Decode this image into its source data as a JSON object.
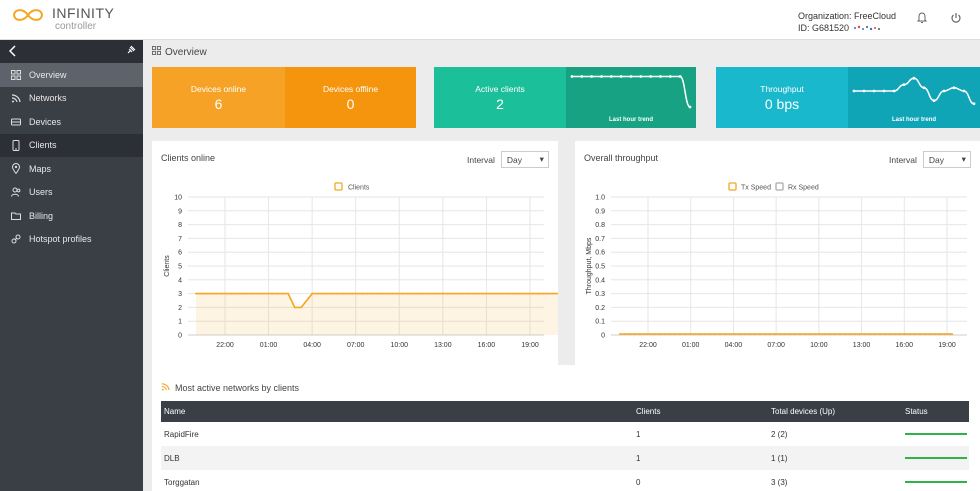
{
  "header": {
    "logo_name": "INFINITY",
    "logo_sub": "controller",
    "organization": "Organization: FreeCloud",
    "id_label": "ID: G681520"
  },
  "sidebar": {
    "items": [
      {
        "label": "Overview",
        "icon": "grid-icon"
      },
      {
        "label": "Networks",
        "icon": "wifi-icon"
      },
      {
        "label": "Devices",
        "icon": "device-icon"
      },
      {
        "label": "Clients",
        "icon": "phone-icon"
      },
      {
        "label": "Maps",
        "icon": "map-pin-icon"
      },
      {
        "label": "Users",
        "icon": "users-icon"
      },
      {
        "label": "Billing",
        "icon": "folder-icon"
      },
      {
        "label": "Hotspot profiles",
        "icon": "link-icon"
      }
    ]
  },
  "page": {
    "title": "Overview"
  },
  "cards": {
    "devices_online": {
      "label": "Devices online",
      "value": "6",
      "color": "#f6a226"
    },
    "devices_offline": {
      "label": "Devices offline",
      "value": "0",
      "color": "#f5950d"
    },
    "active_clients": {
      "label": "Active clients",
      "value": "2",
      "color": "#1bbf9a",
      "trend_color": "#16a283",
      "trend_label": "Last hour trend"
    },
    "throughput": {
      "label": "Throughput",
      "value": "0 bps",
      "color": "#1ab8cc",
      "trend_color": "#10a4b7",
      "trend_label": "Last hour trend"
    }
  },
  "clients_panel": {
    "title": "Clients online",
    "interval_label": "Interval",
    "interval_value": "Day",
    "legend": "Clients",
    "ylabel": "Clients"
  },
  "throughput_panel": {
    "title": "Overall throughput",
    "interval_label": "Interval",
    "interval_value": "Day",
    "legend_tx": "Tx Speed",
    "legend_rx": "Rx Speed",
    "ylabel": "Throughput, Mbps"
  },
  "chart_data": [
    {
      "type": "area",
      "title": "Clients online",
      "ylabel": "Clients",
      "x_ticks": [
        "22:00",
        "01:00",
        "04:00",
        "07:00",
        "10:00",
        "13:00",
        "16:00",
        "19:00"
      ],
      "ylim": [
        0,
        10
      ],
      "y_ticks": [
        0,
        1,
        2,
        3,
        4,
        5,
        6,
        7,
        8,
        9,
        10
      ],
      "series": [
        {
          "name": "Clients",
          "color": "#f5a623",
          "x": [
            0,
            1.2,
            1.45,
            1.6,
            1.75,
            2.0,
            8.0,
            8.0,
            8.05
          ],
          "y": [
            3,
            3,
            3,
            2,
            2,
            3,
            3,
            3,
            0
          ]
        }
      ],
      "x_domain": [
        -0.5,
        8.2
      ]
    },
    {
      "type": "line",
      "title": "Overall throughput",
      "ylabel": "Throughput, Mbps",
      "x_ticks": [
        "22:00",
        "01:00",
        "04:00",
        "07:00",
        "10:00",
        "13:00",
        "16:00",
        "19:00"
      ],
      "ylim": [
        0,
        1
      ],
      "y_ticks": [
        "0",
        "0.1",
        "0.2",
        "0.3",
        "0.4",
        "0.5",
        "0.6",
        "0.7",
        "0.8",
        "0.9",
        "1.0"
      ],
      "series": [
        {
          "name": "Tx Speed",
          "color": "#f5a623",
          "constant": 0
        },
        {
          "name": "Rx Speed",
          "color": "#aaaaaa",
          "constant": 0
        }
      ]
    },
    {
      "type": "line",
      "title": "Active clients last hour trend",
      "values": [
        2,
        2,
        2,
        2,
        2,
        2,
        2,
        2,
        2,
        2,
        2,
        2,
        0
      ]
    },
    {
      "type": "line",
      "title": "Throughput last hour trend",
      "values": [
        0.5,
        0.5,
        0.5,
        0.5,
        0.5,
        0.7,
        0.9,
        0.6,
        0.2,
        0.5,
        0.6,
        0.5,
        0.1
      ]
    }
  ],
  "networks": {
    "title": "Most active networks by clients",
    "columns": [
      "Name",
      "Clients",
      "Total devices (Up)",
      "Status"
    ],
    "rows": [
      {
        "name": "RapidFire",
        "clients": "1",
        "devices": "2 (2)",
        "status_level": 1.0
      },
      {
        "name": "DLB",
        "clients": "1",
        "devices": "1 (1)",
        "status_level": 1.0
      },
      {
        "name": "Torggatan",
        "clients": "0",
        "devices": "3 (3)",
        "status_level": 1.0
      }
    ],
    "status_color": "#2db34a"
  }
}
